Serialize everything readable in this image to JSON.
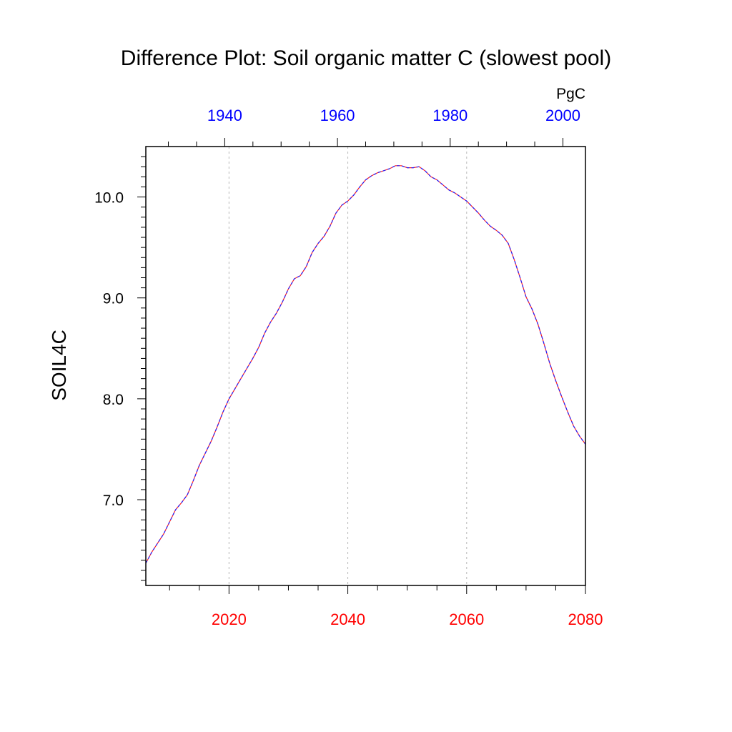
{
  "chart_data": {
    "type": "line",
    "title": "Difference Plot: Soil organic matter C (slowest pool)",
    "ylabel": "SOIL4C",
    "units": "PgC",
    "xlim_bottom": [
      2006,
      2080
    ],
    "xlim_top": [
      1926,
      2004
    ],
    "ylim": [
      6.15,
      10.5
    ],
    "bottom_ticks": [
      2020,
      2040,
      2060,
      2080
    ],
    "bottom_tick_labels": [
      "2020",
      "2040",
      "2060",
      "2080"
    ],
    "top_ticks": [
      1940,
      1960,
      1980,
      2000
    ],
    "top_tick_labels": [
      "1940",
      "1960",
      "1980",
      "2000"
    ],
    "y_ticks": [
      7.0,
      8.0,
      9.0,
      10.0
    ],
    "y_tick_labels": [
      "7.0",
      "8.0",
      "9.0",
      "10.0"
    ],
    "grid": "vertical dotted at bottom major ticks",
    "colors": {
      "bottom_axis": "#ff0000",
      "top_axis": "#0000ff",
      "line": "#8000ff"
    },
    "series": [
      {
        "name": "SOIL4C difference",
        "x": [
          2006,
          2007,
          2008,
          2009,
          2010,
          2011,
          2012,
          2013,
          2014,
          2015,
          2016,
          2017,
          2018,
          2019,
          2020,
          2021,
          2022,
          2023,
          2024,
          2025,
          2026,
          2027,
          2028,
          2029,
          2030,
          2031,
          2032,
          2033,
          2034,
          2035,
          2036,
          2037,
          2038,
          2039,
          2040,
          2041,
          2042,
          2043,
          2044,
          2045,
          2046,
          2047,
          2048,
          2049,
          2050,
          2051,
          2052,
          2053,
          2054,
          2055,
          2056,
          2057,
          2058,
          2059,
          2060,
          2061,
          2062,
          2063,
          2064,
          2065,
          2066,
          2067,
          2068,
          2069,
          2070,
          2071,
          2072,
          2073,
          2074,
          2075,
          2076,
          2077,
          2078,
          2079,
          2080
        ],
        "values": [
          6.37,
          6.48,
          6.57,
          6.66,
          6.78,
          6.9,
          6.97,
          7.05,
          7.19,
          7.34,
          7.46,
          7.58,
          7.72,
          7.87,
          8.0,
          8.1,
          8.2,
          8.3,
          8.4,
          8.51,
          8.65,
          8.76,
          8.85,
          8.96,
          9.09,
          9.19,
          9.22,
          9.31,
          9.45,
          9.54,
          9.61,
          9.71,
          9.84,
          9.92,
          9.96,
          10.02,
          10.1,
          10.17,
          10.21,
          10.24,
          10.26,
          10.28,
          10.31,
          10.31,
          10.29,
          10.29,
          10.3,
          10.26,
          10.2,
          10.17,
          10.12,
          10.07,
          10.04,
          10.0,
          9.96,
          9.9,
          9.84,
          9.77,
          9.71,
          9.67,
          9.62,
          9.54,
          9.38,
          9.2,
          9.01,
          8.89,
          8.74,
          8.55,
          8.35,
          8.18,
          8.02,
          7.87,
          7.73,
          7.63,
          7.55
        ]
      }
    ]
  }
}
